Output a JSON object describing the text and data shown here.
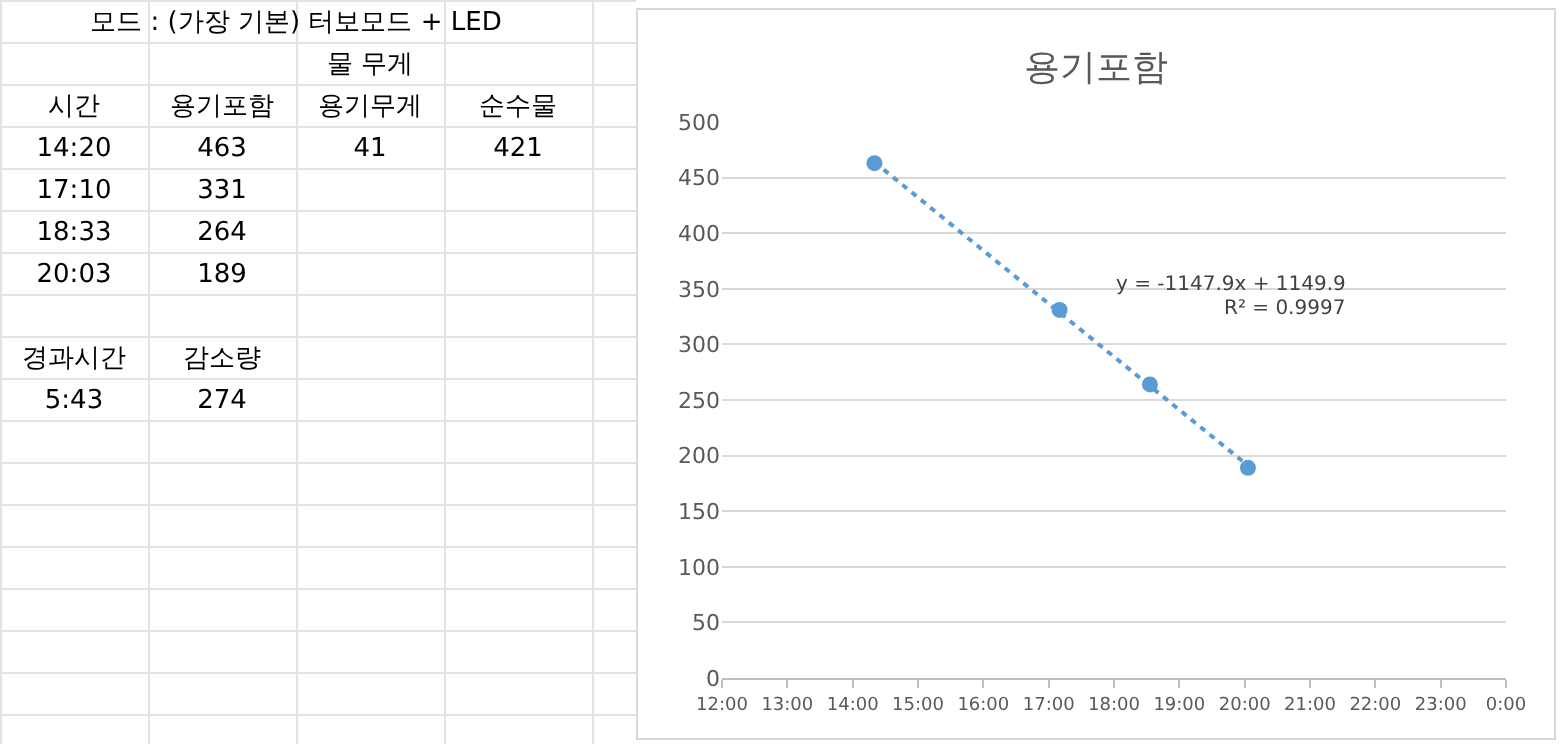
{
  "chart_data": {
    "type": "scatter",
    "title": "용기포함",
    "series": [
      {
        "color": "#5b9bd5",
        "marker": "circle",
        "x": [
          14.333,
          17.167,
          18.55,
          20.05
        ],
        "values": [
          463,
          331,
          264,
          189
        ]
      },
      {
        "type": "line",
        "color": "#5b9bd5",
        "line_style": "dotted",
        "marker": "none",
        "x": [
          14.333,
          20.05
        ],
        "values": [
          464,
          191
        ]
      }
    ],
    "xlim": [
      12,
      24
    ],
    "xticks": [
      {
        "value": 12,
        "label": "12:00"
      },
      {
        "value": 13,
        "label": "13:00"
      },
      {
        "value": 14,
        "label": "14:00"
      },
      {
        "value": 15,
        "label": "15:00"
      },
      {
        "value": 16,
        "label": "16:00"
      },
      {
        "value": 17,
        "label": "17:00"
      },
      {
        "value": 18,
        "label": "18:00"
      },
      {
        "value": 19,
        "label": "19:00"
      },
      {
        "value": 20,
        "label": "20:00"
      },
      {
        "value": 21,
        "label": "21:00"
      },
      {
        "value": 22,
        "label": "22:00"
      },
      {
        "value": 23,
        "label": "23:00"
      },
      {
        "value": 24,
        "label": "0:00"
      }
    ],
    "ylim": [
      0,
      500
    ],
    "yticks": [
      0,
      50,
      100,
      150,
      200,
      250,
      300,
      350,
      400,
      450,
      500
    ],
    "grid": "y",
    "annotations": [
      "y = -1147.9x + 1149.9",
      "R² = 0.9997",
      "모드 : (가장 기본) 터보모드 + LED",
      "물 무게",
      "시간",
      "용기포함",
      "용기무게",
      "순수물",
      "14:20",
      "463",
      "41",
      "421",
      "17:10",
      "331",
      "18:33",
      "264",
      "20:03",
      "189",
      "경과시간",
      "감소량",
      "5:43",
      "274"
    ]
  }
}
